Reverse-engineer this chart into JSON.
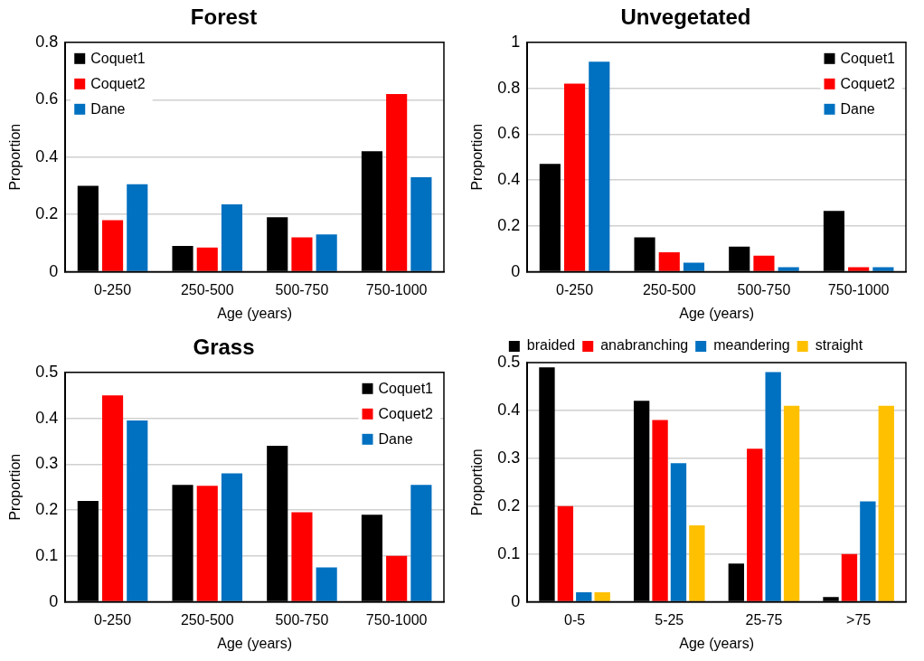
{
  "chart_data": [
    {
      "type": "bar",
      "title": "Forest",
      "xlabel": "Age (years)",
      "ylabel": "Proportion",
      "categories": [
        "0-250",
        "250-500",
        "500-750",
        "750-1000"
      ],
      "ylim": [
        0,
        0.8
      ],
      "yticks": [
        0,
        0.2,
        0.4,
        0.6,
        0.8
      ],
      "grid": "y",
      "legend": "top left",
      "series": [
        {
          "name": "Coquet1",
          "color": "#000000",
          "values": [
            0.3,
            0.09,
            0.19,
            0.42
          ]
        },
        {
          "name": "Coquet2",
          "color": "#ff0000",
          "values": [
            0.18,
            0.085,
            0.12,
            0.62
          ]
        },
        {
          "name": "Dane",
          "color": "#0070c0",
          "values": [
            0.305,
            0.235,
            0.13,
            0.33
          ]
        }
      ]
    },
    {
      "type": "bar",
      "title": "Unvegetated",
      "xlabel": "Age (years)",
      "ylabel": "Proportion",
      "categories": [
        "0-250",
        "250-500",
        "500-750",
        "750-1000"
      ],
      "ylim": [
        0,
        1
      ],
      "yticks": [
        0,
        0.2,
        0.4,
        0.6,
        0.8,
        1
      ],
      "grid": "y",
      "legend": "top right",
      "series": [
        {
          "name": "Coquet1",
          "color": "#000000",
          "values": [
            0.47,
            0.15,
            0.11,
            0.265
          ]
        },
        {
          "name": "Coquet2",
          "color": "#ff0000",
          "values": [
            0.82,
            0.085,
            0.07,
            0.02
          ]
        },
        {
          "name": "Dane",
          "color": "#0070c0",
          "values": [
            0.915,
            0.04,
            0.02,
            0.02
          ]
        }
      ]
    },
    {
      "type": "bar",
      "title": "Grass",
      "xlabel": "Age (years)",
      "ylabel": "Proportion",
      "categories": [
        "0-250",
        "250-500",
        "500-750",
        "750-1000"
      ],
      "ylim": [
        0,
        0.5
      ],
      "yticks": [
        0,
        0.1,
        0.2,
        0.3,
        0.4,
        0.5
      ],
      "grid": "y",
      "legend": "top right",
      "series": [
        {
          "name": "Coquet1",
          "color": "#000000",
          "values": [
            0.22,
            0.255,
            0.34,
            0.19
          ]
        },
        {
          "name": "Coquet2",
          "color": "#ff0000",
          "values": [
            0.45,
            0.253,
            0.195,
            0.1
          ]
        },
        {
          "name": "Dane",
          "color": "#0070c0",
          "values": [
            0.395,
            0.28,
            0.075,
            0.255
          ]
        }
      ]
    },
    {
      "type": "bar",
      "xlabel": "Age (years)",
      "ylabel": "Proportion",
      "categories": [
        "0-5",
        "5-25",
        "25-75",
        ">75"
      ],
      "ylim": [
        0,
        0.5
      ],
      "yticks": [
        0,
        0.1,
        0.2,
        0.3,
        0.4,
        0.5
      ],
      "grid": "y",
      "legend": "top",
      "series": [
        {
          "name": "braided",
          "color": "#000000",
          "values": [
            0.49,
            0.42,
            0.08,
            0.01
          ]
        },
        {
          "name": "anabranching",
          "color": "#ff0000",
          "values": [
            0.2,
            0.38,
            0.32,
            0.1
          ]
        },
        {
          "name": "meandering",
          "color": "#0070c0",
          "values": [
            0.02,
            0.29,
            0.48,
            0.21
          ]
        },
        {
          "name": "straight",
          "color": "#ffc000",
          "values": [
            0.02,
            0.16,
            0.41,
            0.41
          ]
        }
      ]
    }
  ]
}
